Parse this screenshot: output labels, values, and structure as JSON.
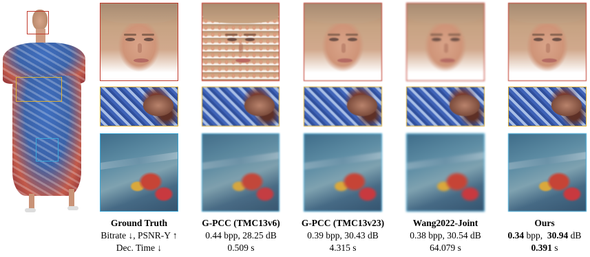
{
  "columns": [
    {
      "title": "Ground Truth",
      "line1": "Bitrate ↓,  PSNR-Y ↑",
      "line2": "Dec. Time ↓"
    },
    {
      "title": "G-PCC (TMC13v6)",
      "line1": "0.44 bpp,  28.25 dB",
      "line2": "0.509 s"
    },
    {
      "title": "G-PCC (TMC13v23)",
      "line1": "0.39 bpp,  30.43 dB",
      "line2": "4.315 s"
    },
    {
      "title": "Wang2022-Joint",
      "line1": "0.38 bpp,  30.54 dB",
      "line2": "64.079 s"
    }
  ],
  "ours": {
    "title": "Ours",
    "bpp": "0.34",
    "bpp_unit": " bpp,  ",
    "db": "30.94",
    "db_unit": " dB",
    "time": "0.391",
    "time_unit": " s"
  },
  "colors": {
    "face_box": "#c0392b",
    "hand_box": "#e0b030",
    "skirt_box": "#3aa7d8"
  }
}
